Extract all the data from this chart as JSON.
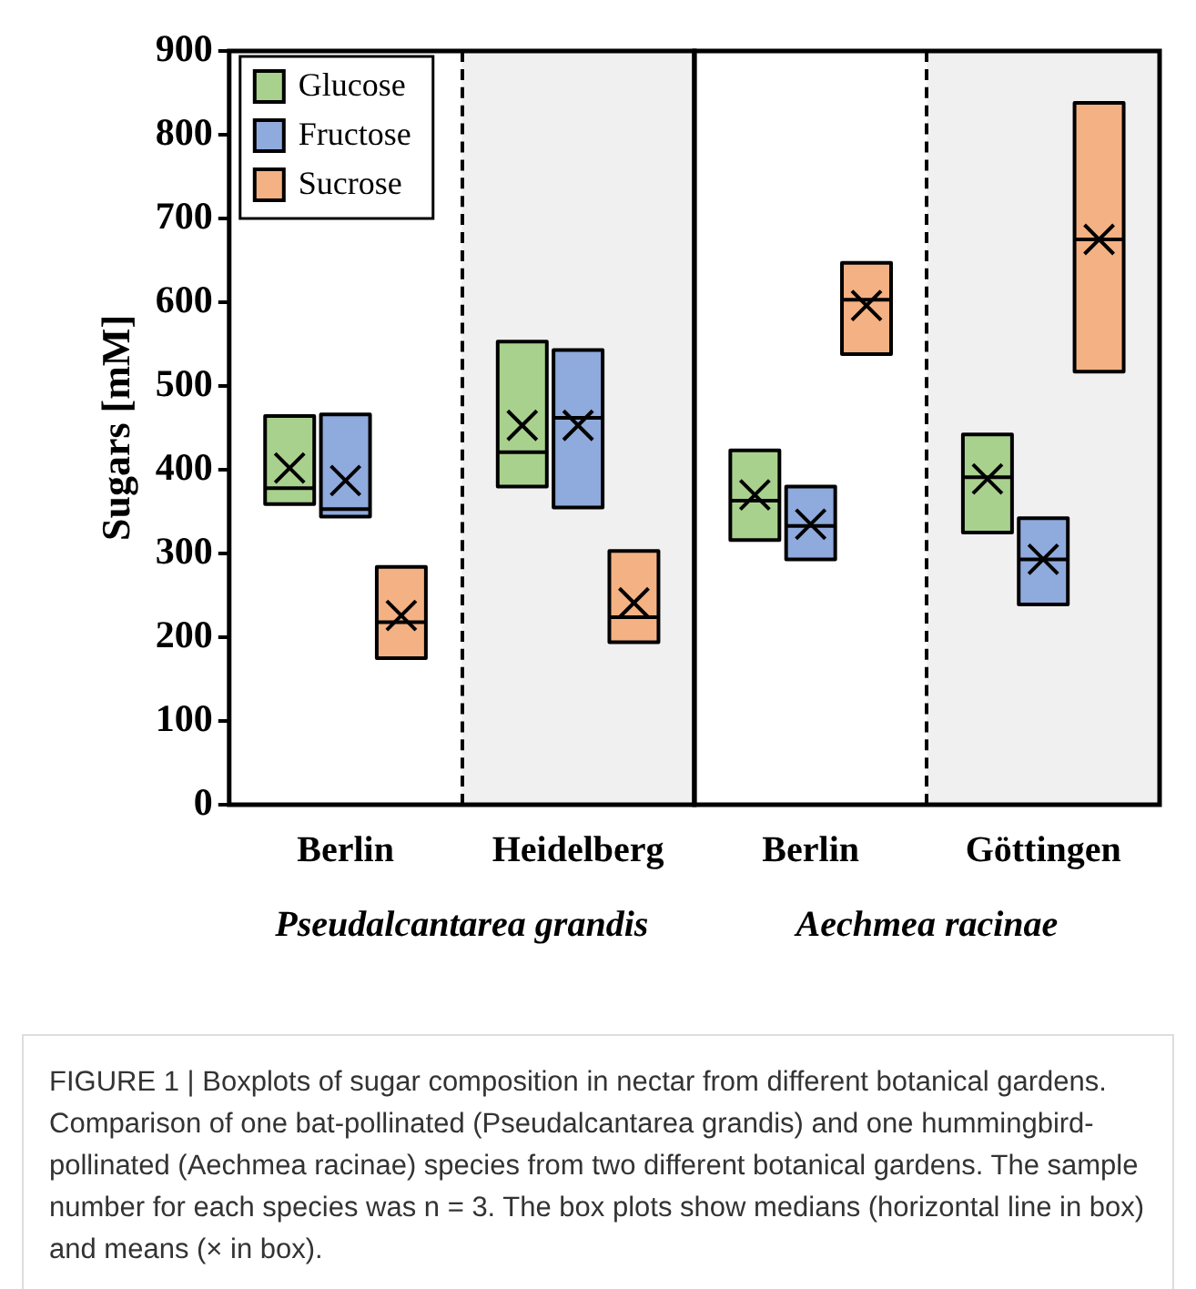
{
  "chart_data": {
    "type": "box",
    "ylabel": "Sugars [mM]",
    "categories": [
      "Berlin",
      "Heidelberg",
      "Berlin",
      "Göttingen"
    ],
    "ylim": [
      0,
      900
    ],
    "yticks": [
      0,
      100,
      200,
      300,
      400,
      500,
      600,
      700,
      800,
      900
    ],
    "legend": "top left",
    "series": [
      {
        "name": "Glucose",
        "color": "#a9d18e",
        "boxes": [
          {
            "low": 359,
            "q1": 359,
            "median": 378,
            "q3": 464,
            "high": 464,
            "mean": 402
          },
          {
            "low": 380,
            "q1": 380,
            "median": 421,
            "q3": 553,
            "high": 553,
            "mean": 453
          },
          {
            "low": 316,
            "q1": 316,
            "median": 363,
            "q3": 423,
            "high": 423,
            "mean": 370
          },
          {
            "low": 325,
            "q1": 325,
            "median": 391,
            "q3": 442,
            "high": 442,
            "mean": 389
          }
        ]
      },
      {
        "name": "Fructose",
        "color": "#8faadc",
        "boxes": [
          {
            "low": 344,
            "q1": 344,
            "median": 353,
            "q3": 466,
            "high": 466,
            "mean": 387
          },
          {
            "low": 355,
            "q1": 355,
            "median": 462,
            "q3": 543,
            "high": 543,
            "mean": 453
          },
          {
            "low": 293,
            "q1": 293,
            "median": 333,
            "q3": 380,
            "high": 380,
            "mean": 335
          },
          {
            "low": 239,
            "q1": 239,
            "median": 293,
            "q3": 342,
            "high": 342,
            "mean": 293
          }
        ]
      },
      {
        "name": "Sucrose",
        "color": "#f4b183",
        "boxes": [
          {
            "low": 175,
            "q1": 175,
            "median": 218,
            "q3": 284,
            "high": 284,
            "mean": 226
          },
          {
            "low": 194,
            "q1": 194,
            "median": 224,
            "q3": 303,
            "high": 303,
            "mean": 241
          },
          {
            "low": 538,
            "q1": 538,
            "median": 603,
            "q3": 647,
            "high": 647,
            "mean": 596
          },
          {
            "low": 517,
            "q1": 517,
            "median": 675,
            "q3": 838,
            "high": 838,
            "mean": 675
          }
        ]
      }
    ],
    "annotations": [
      "Pseudalcantarea grandis",
      "Aechmea racinae",
      "FIGURE 1 | Boxplots of sugar composition in nectar from different botanical gardens. Comparison of one bat-pollinated (Pseudalcantarea grandis) and one hummingbird-pollinated (Aechmea racinae) species from two different botanical gardens. The sample number for each species was n = 3. The box plots show medians (horizontal line in box) and means (× in box)."
    ]
  }
}
